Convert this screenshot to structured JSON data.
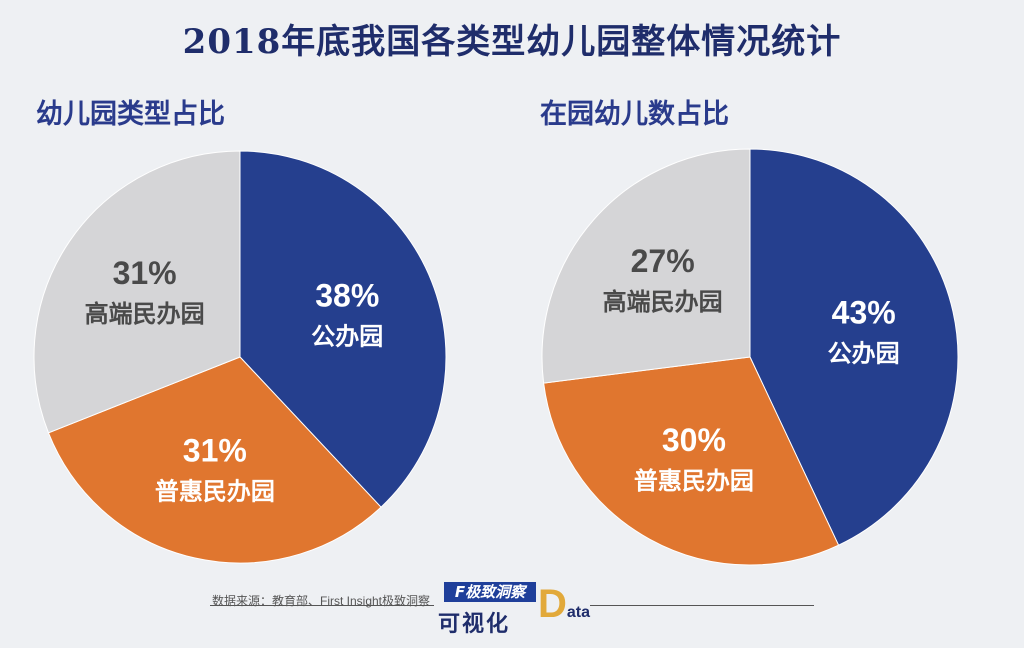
{
  "title": "2018年底我国各类型幼儿园整体情况统计",
  "source": "数据来源：教育部、First Insight极致洞察",
  "brand": {
    "logo_text": "F极致洞察",
    "name": "可视化",
    "data_mark": "D",
    "data_mark_rest": "ata"
  },
  "colors": {
    "public": "#253f8e",
    "puhui": "#e0762f",
    "gaoduan": "#d5d5d7"
  },
  "chart_data": [
    {
      "type": "pie",
      "title": "幼儿园类型占比",
      "slices": [
        {
          "label": "公办园",
          "value": 38,
          "display": "38%"
        },
        {
          "label": "普惠民办园",
          "value": 31,
          "display": "31%"
        },
        {
          "label": "高端民办园",
          "value": 31,
          "display": "31%"
        }
      ]
    },
    {
      "type": "pie",
      "title": "在园幼儿数占比",
      "slices": [
        {
          "label": "公办园",
          "value": 43,
          "display": "43%"
        },
        {
          "label": "普惠民办园",
          "value": 30,
          "display": "30%"
        },
        {
          "label": "高端民办园",
          "value": 27,
          "display": "27%"
        }
      ]
    }
  ]
}
